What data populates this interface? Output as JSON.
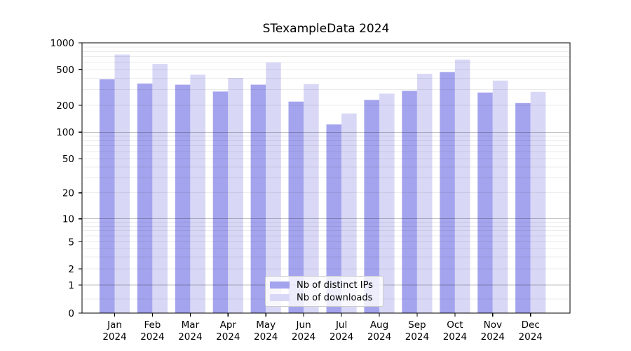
{
  "chart_data": {
    "type": "bar",
    "title": "STexampleData 2024",
    "categories": [
      "Jan",
      "Feb",
      "Mar",
      "Apr",
      "May",
      "Jun",
      "Jul",
      "Aug",
      "Sep",
      "Oct",
      "Nov",
      "Dec"
    ],
    "x_tick_year": "2024",
    "series": [
      {
        "name": "Nb of distinct IPs",
        "color": "#a4a4ee",
        "values": [
          390,
          350,
          340,
          285,
          340,
          220,
          122,
          230,
          290,
          470,
          278,
          212
        ]
      },
      {
        "name": "Nb of downloads",
        "color": "#d8d8f6",
        "values": [
          740,
          580,
          440,
          405,
          600,
          345,
          162,
          270,
          450,
          650,
          378,
          283
        ]
      }
    ],
    "yticks": [
      0,
      1,
      2,
      5,
      10,
      20,
      50,
      100,
      200,
      500,
      1000
    ],
    "ylim": [
      0,
      1000
    ],
    "yscale": "symlog",
    "grid": true,
    "legend_position": "lower center",
    "xlabel": "",
    "ylabel": ""
  }
}
